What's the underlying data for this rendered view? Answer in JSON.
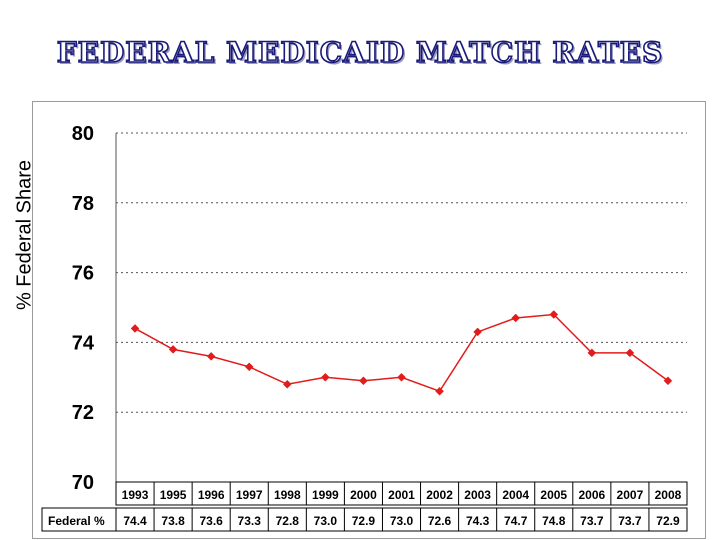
{
  "title": "FEDERAL MEDICAID MATCH RATES",
  "chart_data": {
    "type": "line",
    "title": "FEDERAL MEDICAID MATCH RATES",
    "ylabel": "% Federal Share",
    "xlabel": "",
    "ylim": [
      70,
      80
    ],
    "yticks": [
      "70",
      "72",
      "74",
      "76",
      "78",
      "80"
    ],
    "grid": true,
    "categories": [
      "1993",
      "1995",
      "1996",
      "1997",
      "1998",
      "1999",
      "2000",
      "2001",
      "2002",
      "2003",
      "2004",
      "2005",
      "2006",
      "2007",
      "2008"
    ],
    "series": [
      {
        "name": "Federal %",
        "color": "#e31b1b",
        "values": [
          74.4,
          73.8,
          73.6,
          73.3,
          72.8,
          73.0,
          72.9,
          73.0,
          72.6,
          74.3,
          74.7,
          74.8,
          73.7,
          73.7,
          72.9
        ]
      }
    ],
    "table": {
      "row_label": "Federal %",
      "values": [
        "74.4",
        "73.8",
        "73.6",
        "73.3",
        "72.8",
        "73.0",
        "72.9",
        "73.0",
        "72.6",
        "74.3",
        "74.7",
        "74.8",
        "73.7",
        "73.7",
        "72.9"
      ]
    }
  }
}
